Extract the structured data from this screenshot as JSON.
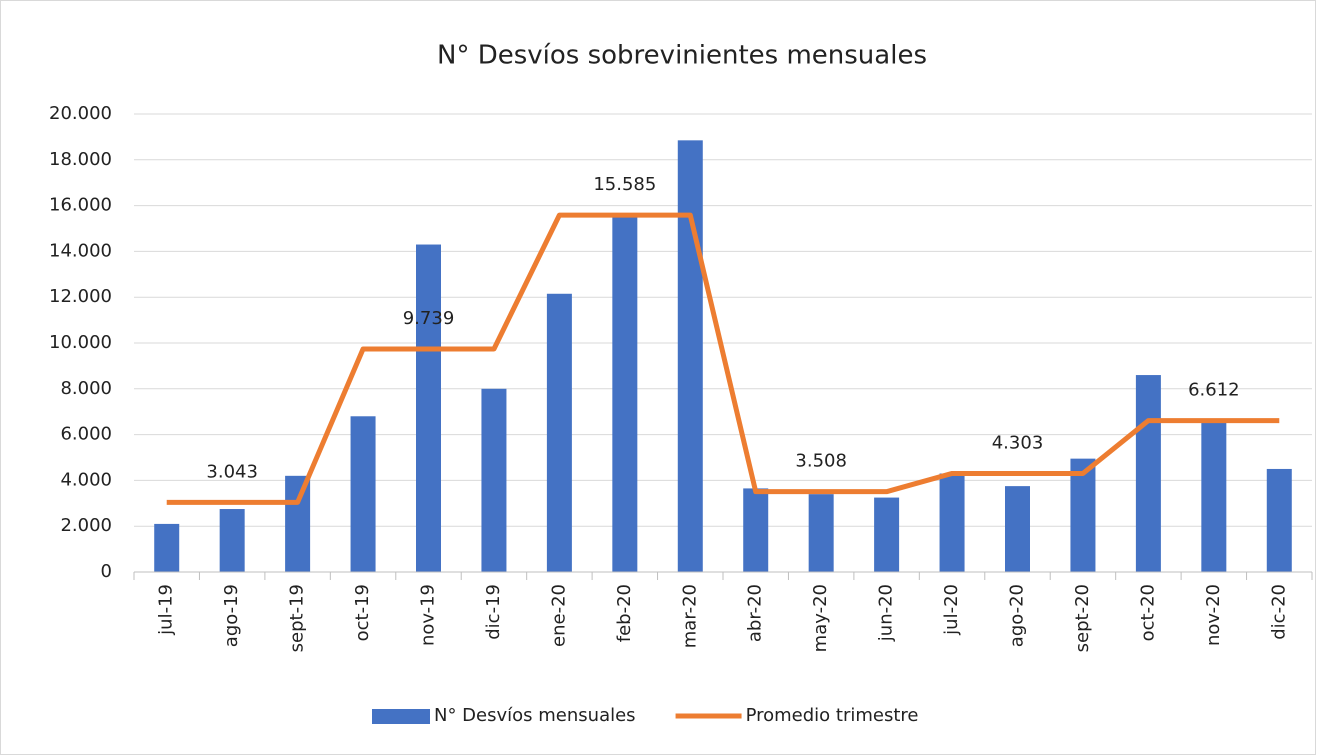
{
  "chart_data": {
    "type": "bar",
    "title": "N° Desvíos sobrevinientes mensuales",
    "categories": [
      "jul-19",
      "ago-19",
      "sept-19",
      "oct-19",
      "nov-19",
      "dic-19",
      "ene-20",
      "feb-20",
      "mar-20",
      "abr-20",
      "may-20",
      "jun-20",
      "jul-20",
      "ago-20",
      "sept-20",
      "oct-20",
      "nov-20",
      "dic-20"
    ],
    "series": [
      {
        "name": "N° Desvíos mensuales",
        "type": "bar",
        "color": "#4472c4",
        "values": [
          2100,
          2750,
          4200,
          6800,
          14300,
          8000,
          12150,
          15600,
          18850,
          3650,
          3400,
          3250,
          4300,
          3750,
          4950,
          8600,
          6600,
          4500
        ]
      },
      {
        "name": "Promedio trimestre",
        "type": "line",
        "color": "#ed7d31",
        "values": [
          3043,
          3043,
          3043,
          9739,
          9739,
          9739,
          15585,
          15585,
          15585,
          3508,
          3508,
          3508,
          4303,
          4303,
          4303,
          6612,
          6612,
          6612
        ],
        "value_labels": [
          null,
          "3.043",
          null,
          null,
          "9.739",
          null,
          null,
          "15.585",
          null,
          null,
          "3.508",
          null,
          null,
          "4.303",
          null,
          null,
          "6.612",
          null
        ]
      }
    ],
    "ylim": [
      0,
      20000
    ],
    "yticks": [
      0,
      {
        "value": 2000,
        "label": "2.000"
      },
      {
        "value": 4000,
        "label": "4.000"
      },
      {
        "value": 6000,
        "label": "6.000"
      },
      {
        "value": 8000,
        "label": "8.000"
      },
      {
        "value": 10000,
        "label": "10.000"
      },
      {
        "value": 12000,
        "label": "12.000"
      },
      {
        "value": 14000,
        "label": "14.000"
      },
      {
        "value": 16000,
        "label": "16.000"
      },
      {
        "value": 18000,
        "label": "18.000"
      },
      {
        "value": 20000,
        "label": "20.000"
      }
    ],
    "grid": true,
    "legend": "bottom"
  }
}
